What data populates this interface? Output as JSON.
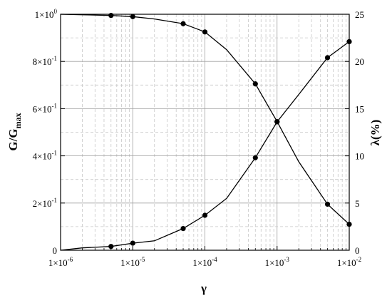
{
  "chart_data": {
    "type": "line",
    "xlabel": "γ",
    "x_scale": "log",
    "xlim": [
      1e-06,
      0.01
    ],
    "x_major_ticks": [
      {
        "value": 1e-06,
        "label": "1×10",
        "exp": "-6"
      },
      {
        "value": 1e-05,
        "label": "1×10",
        "exp": "-5"
      },
      {
        "value": 0.0001,
        "label": "1×10",
        "exp": "-4"
      },
      {
        "value": 0.001,
        "label": "1×10",
        "exp": "-3"
      },
      {
        "value": 0.01,
        "label": "1×10",
        "exp": "-2"
      }
    ],
    "y_left": {
      "label_main": "G/G",
      "label_sub": "max",
      "lim": [
        0,
        1
      ],
      "ticks": [
        {
          "value": 0,
          "label": "0",
          "exp": ""
        },
        {
          "value": 0.2,
          "label": "2×10",
          "exp": "-1"
        },
        {
          "value": 0.4,
          "label": "4×10",
          "exp": "-1"
        },
        {
          "value": 0.6,
          "label": "6×10",
          "exp": "-1"
        },
        {
          "value": 0.8,
          "label": "8×10",
          "exp": "-1"
        },
        {
          "value": 1.0,
          "label": "1×10",
          "exp": "0"
        }
      ]
    },
    "y_right": {
      "label": "λ(%)",
      "lim": [
        0,
        25
      ],
      "ticks": [
        0,
        5,
        10,
        15,
        20,
        25
      ]
    },
    "grid": true,
    "series": [
      {
        "axis": "left",
        "points": [
          {
            "x": 1e-06,
            "y": 1.0
          },
          {
            "x": 2e-06,
            "y": 0.998
          },
          {
            "x": 5e-06,
            "y": 0.995
          },
          {
            "x": 1e-05,
            "y": 0.99
          },
          {
            "x": 2e-05,
            "y": 0.98
          },
          {
            "x": 5e-05,
            "y": 0.96
          },
          {
            "x": 0.0001,
            "y": 0.925
          },
          {
            "x": 0.0002,
            "y": 0.85
          },
          {
            "x": 0.0005,
            "y": 0.705
          },
          {
            "x": 0.001,
            "y": 0.545
          },
          {
            "x": 0.002,
            "y": 0.375
          },
          {
            "x": 0.005,
            "y": 0.195
          },
          {
            "x": 0.01,
            "y": 0.11
          }
        ],
        "markers": [
          {
            "x": 5e-06,
            "y": 0.995
          },
          {
            "x": 1e-05,
            "y": 0.99
          },
          {
            "x": 5e-05,
            "y": 0.96
          },
          {
            "x": 0.0001,
            "y": 0.925
          },
          {
            "x": 0.0005,
            "y": 0.705
          },
          {
            "x": 0.001,
            "y": 0.545
          },
          {
            "x": 0.005,
            "y": 0.195
          },
          {
            "x": 0.01,
            "y": 0.11
          }
        ]
      },
      {
        "axis": "right",
        "points": [
          {
            "x": 1e-06,
            "y": 0.0
          },
          {
            "x": 2e-06,
            "y": 0.25
          },
          {
            "x": 5e-06,
            "y": 0.4
          },
          {
            "x": 1e-05,
            "y": 0.75
          },
          {
            "x": 2e-05,
            "y": 1.0
          },
          {
            "x": 5e-05,
            "y": 2.3
          },
          {
            "x": 0.0001,
            "y": 3.7
          },
          {
            "x": 0.0002,
            "y": 5.5
          },
          {
            "x": 0.0005,
            "y": 9.8
          },
          {
            "x": 0.001,
            "y": 13.6
          },
          {
            "x": 0.002,
            "y": 16.5
          },
          {
            "x": 0.005,
            "y": 20.4
          },
          {
            "x": 0.01,
            "y": 22.1
          }
        ],
        "markers": [
          {
            "x": 5e-06,
            "y": 0.4
          },
          {
            "x": 1e-05,
            "y": 0.75
          },
          {
            "x": 5e-05,
            "y": 2.3
          },
          {
            "x": 0.0001,
            "y": 3.7
          },
          {
            "x": 0.0005,
            "y": 9.8
          },
          {
            "x": 0.001,
            "y": 13.6
          },
          {
            "x": 0.005,
            "y": 20.4
          },
          {
            "x": 0.01,
            "y": 22.1
          }
        ]
      }
    ]
  }
}
